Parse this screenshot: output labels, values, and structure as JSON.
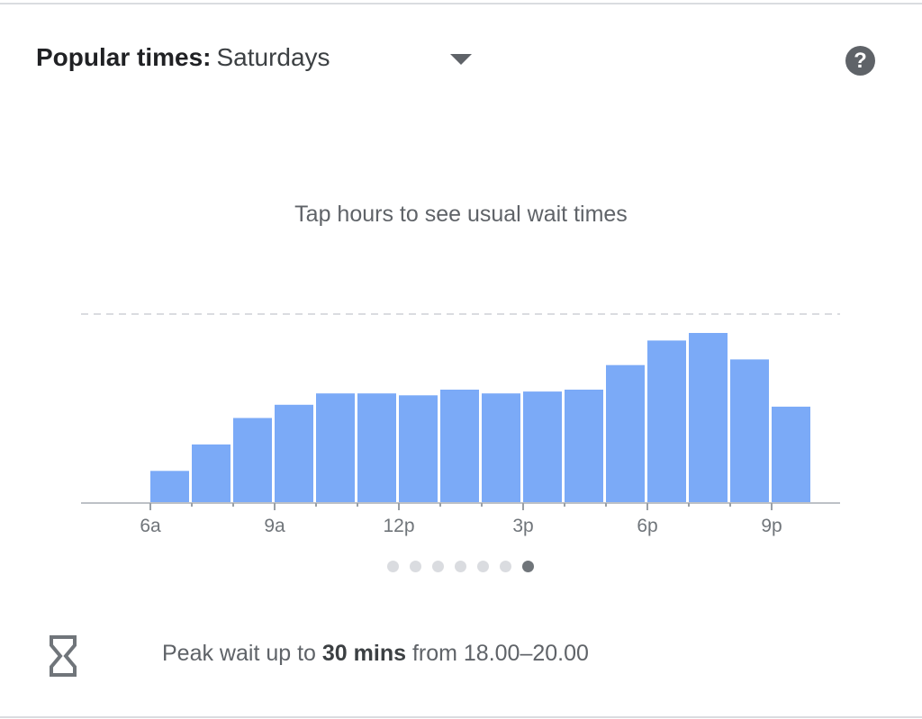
{
  "header": {
    "label": "Popular times:",
    "selected_day": "Saturdays",
    "dropdown_icon": "caret-down-icon",
    "help_icon": "help-circle-icon"
  },
  "hint": "Tap hours to see usual wait times",
  "chart_data": {
    "type": "bar",
    "categories": [
      "6a",
      "7a",
      "8a",
      "9a",
      "10a",
      "11a",
      "12p",
      "1p",
      "2p",
      "3p",
      "4p",
      "5p",
      "6p",
      "7p",
      "8p",
      "9p"
    ],
    "values": [
      17,
      31,
      45,
      52,
      58,
      58,
      57,
      60,
      58,
      59,
      60,
      73,
      86,
      90,
      76,
      51
    ],
    "tick_labels": [
      "6a",
      "9a",
      "12p",
      "3p",
      "6p",
      "9p"
    ],
    "ylim": [
      0,
      100
    ],
    "bar_color": "#7baaf7",
    "grid": "dashed max line"
  },
  "pager": {
    "count": 7,
    "active_index": 6
  },
  "wait": {
    "icon": "hourglass-icon",
    "prefix": "Peak wait up to",
    "amount": "30 mins",
    "suffix": "from 18.00–20.00"
  }
}
